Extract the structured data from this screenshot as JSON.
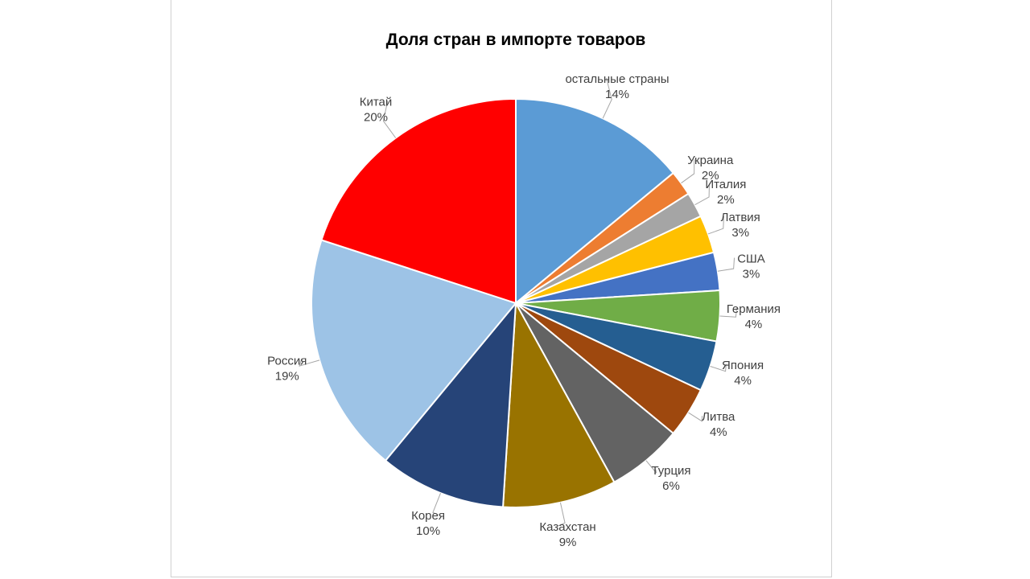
{
  "chart_data": {
    "type": "pie",
    "title": "Доля стран в импорте товаров",
    "start": "top",
    "direction": "clockwise",
    "slices": [
      {
        "name": "остальные страны",
        "value": 14,
        "label": "14%",
        "color": "#5b9bd5"
      },
      {
        "name": "Украина",
        "value": 2,
        "label": "2%",
        "color": "#ed7d31"
      },
      {
        "name": "Италия",
        "value": 2,
        "label": "2%",
        "color": "#a5a5a5"
      },
      {
        "name": "Латвия",
        "value": 3,
        "label": "3%",
        "color": "#ffc000"
      },
      {
        "name": "США",
        "value": 3,
        "label": "3%",
        "color": "#4472c4"
      },
      {
        "name": "Германия",
        "value": 4,
        "label": "4%",
        "color": "#70ad47"
      },
      {
        "name": "Япония",
        "value": 4,
        "label": "4%",
        "color": "#255e91"
      },
      {
        "name": "Литва",
        "value": 4,
        "label": "4%",
        "color": "#9e480e"
      },
      {
        "name": "Турция",
        "value": 6,
        "label": "6%",
        "color": "#636363"
      },
      {
        "name": "Казахстан",
        "value": 9,
        "label": "9%",
        "color": "#997300"
      },
      {
        "name": "Корея",
        "value": 10,
        "label": "10%",
        "color": "#264478"
      },
      {
        "name": "Россия",
        "value": 19,
        "label": "19%",
        "color": "#9dc3e6"
      },
      {
        "name": "Китай",
        "value": 20,
        "label": "20%",
        "color": "#ff0000"
      }
    ]
  }
}
